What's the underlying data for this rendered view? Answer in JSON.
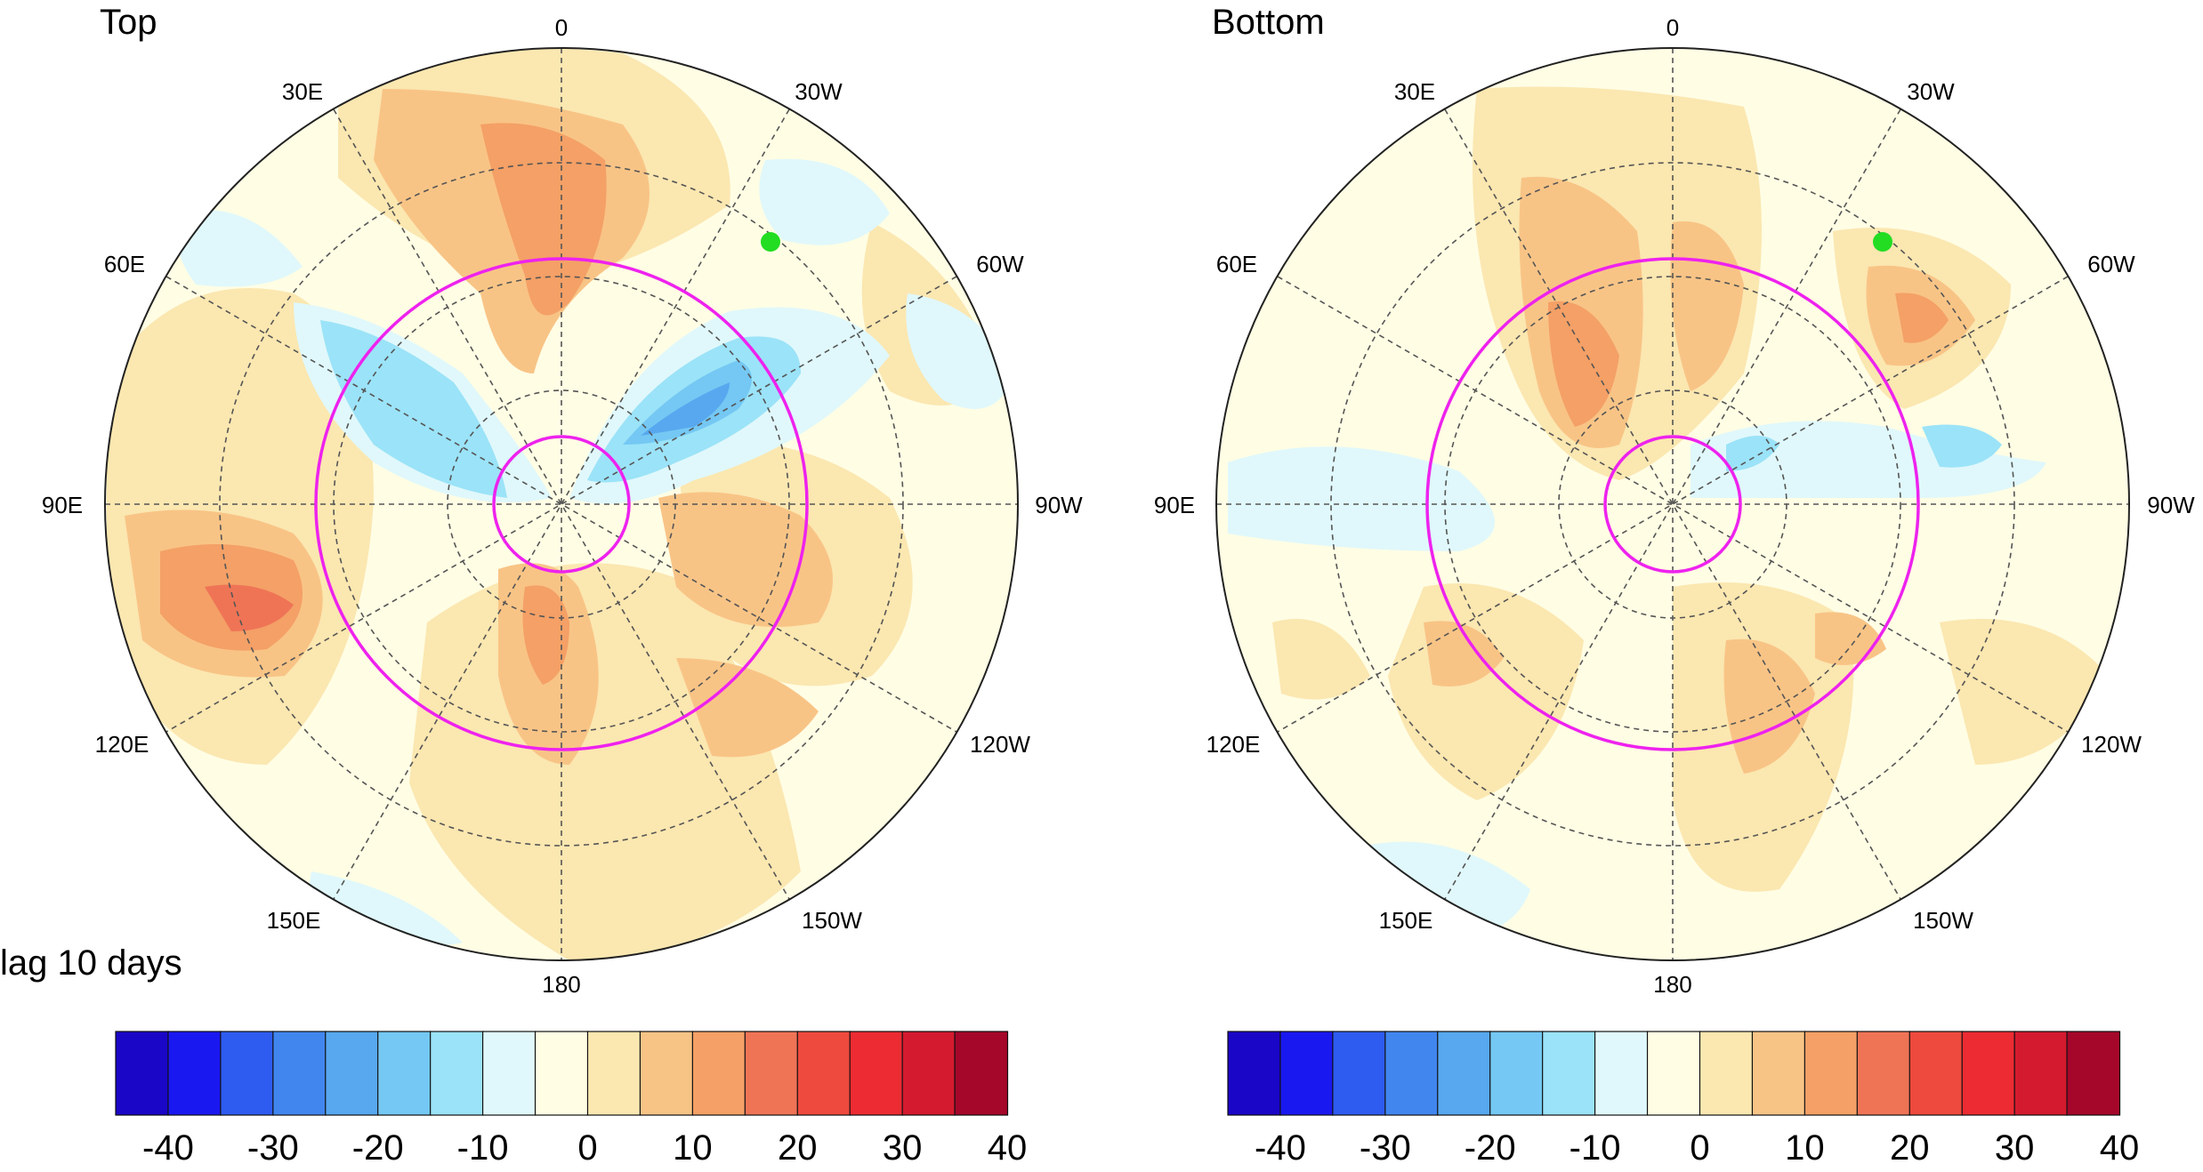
{
  "panels": [
    {
      "title": "Top",
      "lon_labels": [
        "0",
        "30W",
        "60W",
        "90W",
        "120W",
        "150W",
        "180",
        "150E",
        "120E",
        "90E",
        "60E",
        "30E"
      ]
    },
    {
      "title": "Bottom",
      "lon_labels": [
        "0",
        "30W",
        "60W",
        "90W",
        "120W",
        "150W",
        "180",
        "150E",
        "120E",
        "90E",
        "60E",
        "30E"
      ]
    }
  ],
  "caption": "lag 10 days",
  "colorbar": {
    "ticks": [
      "-40",
      "-30",
      "-20",
      "-10",
      "0",
      "10",
      "20",
      "30",
      "40"
    ],
    "colors": [
      "#1a06c6",
      "#1a18f0",
      "#2e5cf0",
      "#4186ef",
      "#57a8ef",
      "#74c8f3",
      "#9be3f8",
      "#e0f8fb",
      "#fffde4",
      "#fbe7b0",
      "#f8c486",
      "#f4a066",
      "#ef7456",
      "#ee4a3d",
      "#ec2b32",
      "#d41a2e",
      "#a5072a"
    ]
  },
  "marker_color": "#22dd22",
  "ring_color": "#ee22ee",
  "palette": {
    "neg_light": "#e0f8fb",
    "neg_mid": "#9be3f8",
    "neg_strong": "#74c8f3",
    "neg_deep": "#57a8ef",
    "pos_light": "#fffde4",
    "pos_1": "#fbe7b0",
    "pos_2": "#f8c486",
    "pos_3": "#f4a066",
    "pos_4": "#ef7456"
  }
}
